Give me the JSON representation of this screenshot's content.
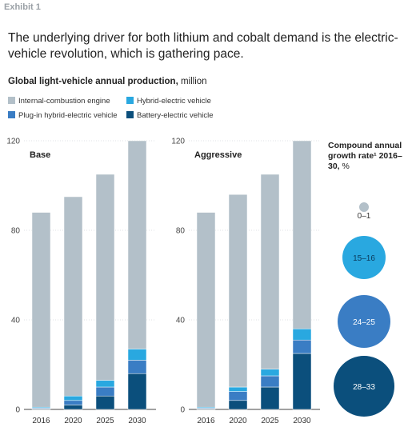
{
  "exhibit": "Exhibit 1",
  "headline": "The underlying driver for both lithium and cobalt demand is the electric-vehicle revolution, which is gathering pace.",
  "subtitle_bold": "Global light-vehicle annual production,",
  "subtitle_rest": " million",
  "legend": [
    {
      "label": "Internal-combustion engine",
      "color": "#b3c0c9"
    },
    {
      "label": "Hybrid-electric vehicle",
      "color": "#29a8e0"
    },
    {
      "label": "Plug-in hybrid-electric vehicle",
      "color": "#3a7dc4"
    },
    {
      "label": "Battery-electric vehicle",
      "color": "#0b4f7c"
    }
  ],
  "cagr": {
    "title_bold": "Compound annual growth rate¹ 2016–30,",
    "title_rest": " %",
    "bubbles": [
      {
        "label": "0–1",
        "color": "#b3c0c9"
      },
      {
        "label": "15–16",
        "color": "#29a8e0"
      },
      {
        "label": "24–25",
        "color": "#3a7dc4"
      },
      {
        "label": "28–33",
        "color": "#0b4f7c"
      }
    ]
  },
  "chart_data": [
    {
      "type": "bar",
      "title": "Base",
      "categories": [
        "2016",
        "2020",
        "2025",
        "2030"
      ],
      "ylim": [
        0,
        120
      ],
      "yticks": [
        0,
        40,
        80,
        120
      ],
      "series": [
        {
          "name": "Battery-electric vehicle",
          "values": [
            0.3,
            2,
            6,
            16
          ]
        },
        {
          "name": "Plug-in hybrid-electric vehicle",
          "values": [
            0.3,
            2,
            4,
            6
          ]
        },
        {
          "name": "Hybrid-electric vehicle",
          "values": [
            0.4,
            2,
            3,
            5
          ]
        },
        {
          "name": "Internal-combustion engine",
          "values": [
            87,
            89,
            92,
            93
          ]
        }
      ]
    },
    {
      "type": "bar",
      "title": "Aggressive",
      "categories": [
        "2016",
        "2020",
        "2025",
        "2030"
      ],
      "ylim": [
        0,
        120
      ],
      "yticks": [
        0,
        40,
        80,
        120
      ],
      "series": [
        {
          "name": "Battery-electric vehicle",
          "values": [
            0.3,
            4,
            10,
            25
          ]
        },
        {
          "name": "Plug-in hybrid-electric vehicle",
          "values": [
            0.3,
            4,
            5,
            6
          ]
        },
        {
          "name": "Hybrid-electric vehicle",
          "values": [
            0.4,
            2,
            3,
            5
          ]
        },
        {
          "name": "Internal-combustion engine",
          "values": [
            87,
            86,
            87,
            84
          ]
        }
      ]
    }
  ]
}
